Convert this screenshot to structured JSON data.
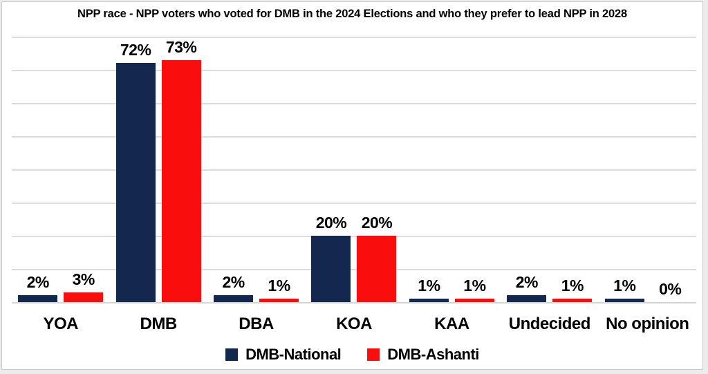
{
  "title": "NPP race - NPP voters who voted for DMB in the 2024 Elections and who they prefer to lead NPP in 2028",
  "chart_data": {
    "type": "bar",
    "title": "NPP race - NPP voters who voted for DMB in the 2024 Elections and who they prefer to lead NPP in 2028",
    "categories": [
      "YOA",
      "DMB",
      "DBA",
      "KOA",
      "KAA",
      "Undecided",
      "No opinion"
    ],
    "series": [
      {
        "name": "DMB-National",
        "color": "#14274f",
        "values": [
          2,
          72,
          2,
          20,
          1,
          2,
          1
        ],
        "labels": [
          "2%",
          "72%",
          "2%",
          "20%",
          "1%",
          "2%",
          "1%"
        ]
      },
      {
        "name": "DMB-Ashanti",
        "color": "#f90d0d",
        "values": [
          3,
          73,
          1,
          20,
          1,
          1,
          0
        ],
        "labels": [
          "3%",
          "73%",
          "1%",
          "20%",
          "1%",
          "1%",
          "0%"
        ]
      }
    ],
    "xlabel": "",
    "ylabel": "",
    "ylim": [
      0,
      80
    ],
    "grid_step": 10,
    "grid": true,
    "y_axis_labels_visible": false,
    "legend_position": "bottom"
  },
  "colors": {
    "gridline": "#dcdcdc",
    "baseline": "#d5d5d5",
    "frame_border": "#c9c9c9",
    "chart_background": "#ffffff",
    "page_background": "#ececec",
    "text": "#000000"
  }
}
